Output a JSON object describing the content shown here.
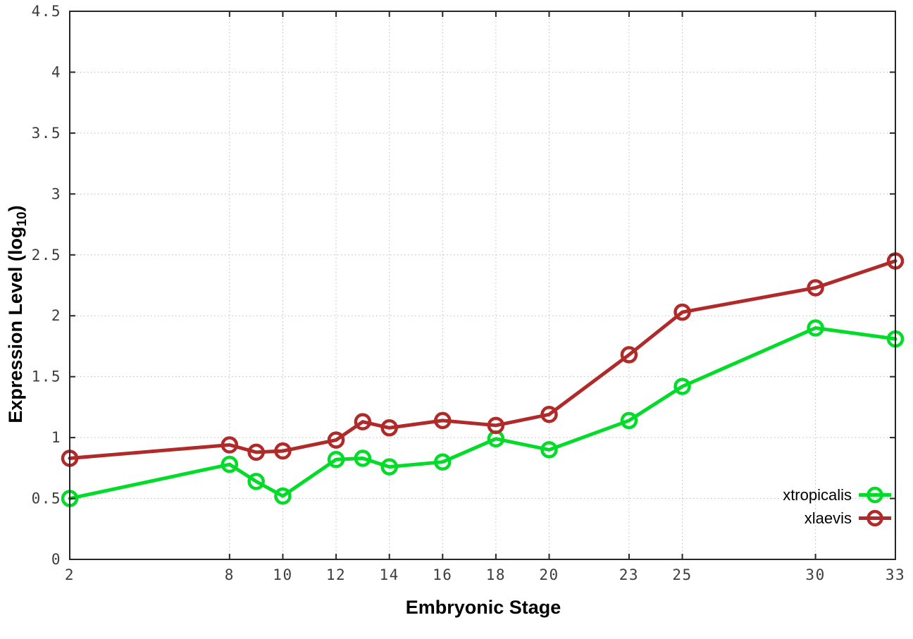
{
  "chart_data": {
    "type": "line",
    "title": "",
    "xlabel": "Embryonic Stage",
    "ylabel": "Expression Level (log10)",
    "ylabel_main": "Expression Level (log",
    "ylabel_sub": "10",
    "ylabel_close": ")",
    "x": [
      2,
      8,
      9,
      10,
      12,
      13,
      14,
      16,
      18,
      20,
      23,
      25,
      30,
      33
    ],
    "series": [
      {
        "name": "xtropicalis",
        "color": "#00dc28",
        "values": [
          0.5,
          0.78,
          0.64,
          0.52,
          0.82,
          0.83,
          0.76,
          0.8,
          0.99,
          0.9,
          1.14,
          1.42,
          1.9,
          1.81
        ]
      },
      {
        "name": "xlaevis",
        "color": "#b02a2a",
        "values": [
          0.83,
          0.94,
          0.88,
          0.89,
          0.98,
          1.13,
          1.08,
          1.14,
          1.1,
          1.19,
          1.68,
          2.03,
          2.23,
          2.45
        ]
      }
    ],
    "xticks": [
      2,
      8,
      10,
      12,
      14,
      16,
      18,
      20,
      23,
      25,
      30,
      33
    ],
    "yticks": [
      0,
      0.5,
      1,
      1.5,
      2,
      2.5,
      3,
      3.5,
      4,
      4.5
    ],
    "xlim": [
      2,
      33
    ],
    "ylim": [
      0,
      4.5
    ],
    "grid": "dotted-both-axes",
    "legend_position": "bottom-right-inside",
    "axis_color": "#262626",
    "grid_color": "#bcbcbc",
    "tick_label_color": "#3d3d3d",
    "background_color": "#ffffff"
  }
}
